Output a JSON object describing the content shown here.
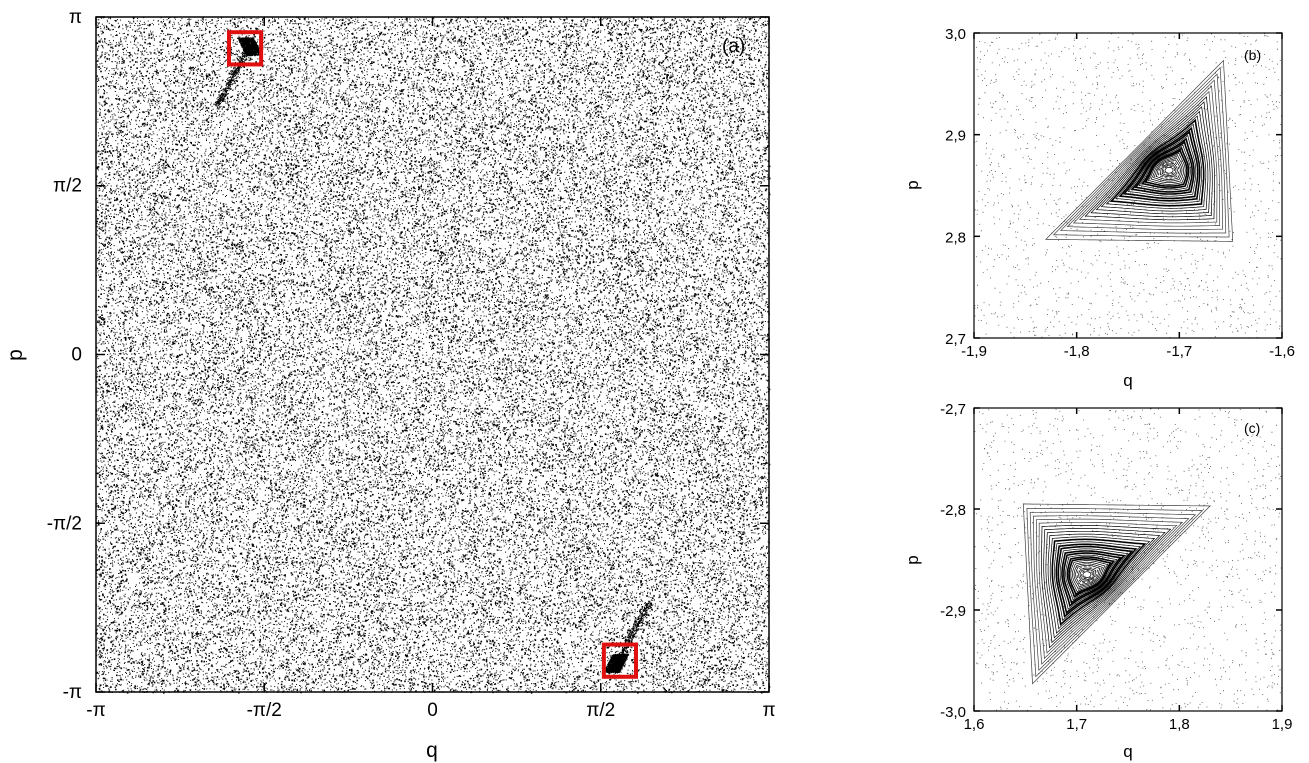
{
  "figure": {
    "palette": {
      "points": "#000000",
      "highlight": "#e01010",
      "frame": "#000000"
    }
  },
  "chart_data": [
    {
      "panel": "(a)",
      "type": "scatter",
      "description_visible": "Phase-space scatter of a chaotic sea with two small islands marked by red squares",
      "xlabel": "q",
      "ylabel": "p",
      "xlim": [
        -3.14159,
        3.14159
      ],
      "ylim": [
        -3.14159,
        3.14159
      ],
      "xticks": [
        {
          "value": -3.14159,
          "label": "-π"
        },
        {
          "value": -1.5708,
          "label": "-π/2"
        },
        {
          "value": 0,
          "label": "0"
        },
        {
          "value": 1.5708,
          "label": "π/2"
        },
        {
          "value": 3.14159,
          "label": "π"
        }
      ],
      "yticks": [
        {
          "value": -3.14159,
          "label": "-π"
        },
        {
          "value": -1.5708,
          "label": "-π/2"
        },
        {
          "value": 0,
          "label": "0"
        },
        {
          "value": 1.5708,
          "label": "π/2"
        },
        {
          "value": 3.14159,
          "label": "π"
        }
      ],
      "islands": [
        {
          "center": [
            -1.71,
            2.87
          ]
        },
        {
          "center": [
            1.71,
            -2.87
          ]
        }
      ],
      "highlight_boxes": [
        {
          "q_range": [
            -1.9,
            -1.6
          ],
          "p_range": [
            2.7,
            3.0
          ]
        },
        {
          "q_range": [
            1.6,
            1.9
          ],
          "p_range": [
            -3.0,
            -2.7
          ]
        }
      ],
      "grid": false
    },
    {
      "panel": "(b)",
      "type": "scatter",
      "xlabel": "q",
      "ylabel": "p",
      "xlim": [
        -1.9,
        -1.6
      ],
      "ylim": [
        2.7,
        3.0
      ],
      "xticks": [
        {
          "value": -1.9,
          "label": "-1,9"
        },
        {
          "value": -1.8,
          "label": "-1,8"
        },
        {
          "value": -1.7,
          "label": "-1,7"
        },
        {
          "value": -1.6,
          "label": "-1,6"
        }
      ],
      "yticks": [
        {
          "value": 2.7,
          "label": "2,7"
        },
        {
          "value": 2.8,
          "label": "2,8"
        },
        {
          "value": 2.9,
          "label": "2,9"
        },
        {
          "value": 3.0,
          "label": "3,0"
        }
      ],
      "island": {
        "center": [
          -1.71,
          2.865
        ],
        "outer_boundary": [
          [
            -1.83,
            2.797
          ],
          [
            -1.657,
            2.973
          ],
          [
            -1.648,
            2.795
          ]
        ]
      },
      "grid": false
    },
    {
      "panel": "(c)",
      "type": "scatter",
      "xlabel": "q",
      "ylabel": "p",
      "xlim": [
        1.6,
        1.9
      ],
      "ylim": [
        -3.0,
        -2.7
      ],
      "xticks": [
        {
          "value": 1.6,
          "label": "1,6"
        },
        {
          "value": 1.7,
          "label": "1,7"
        },
        {
          "value": 1.8,
          "label": "1,8"
        },
        {
          "value": 1.9,
          "label": "1,9"
        }
      ],
      "yticks": [
        {
          "value": -3.0,
          "label": "-3,0"
        },
        {
          "value": -2.9,
          "label": "-2,9"
        },
        {
          "value": -2.8,
          "label": "-2,8"
        },
        {
          "value": -2.7,
          "label": "-2,7"
        }
      ],
      "island": {
        "center": [
          1.71,
          -2.865
        ],
        "outer_boundary": [
          [
            1.83,
            -2.797
          ],
          [
            1.657,
            -2.973
          ],
          [
            1.648,
            -2.795
          ]
        ]
      },
      "grid": false
    }
  ]
}
